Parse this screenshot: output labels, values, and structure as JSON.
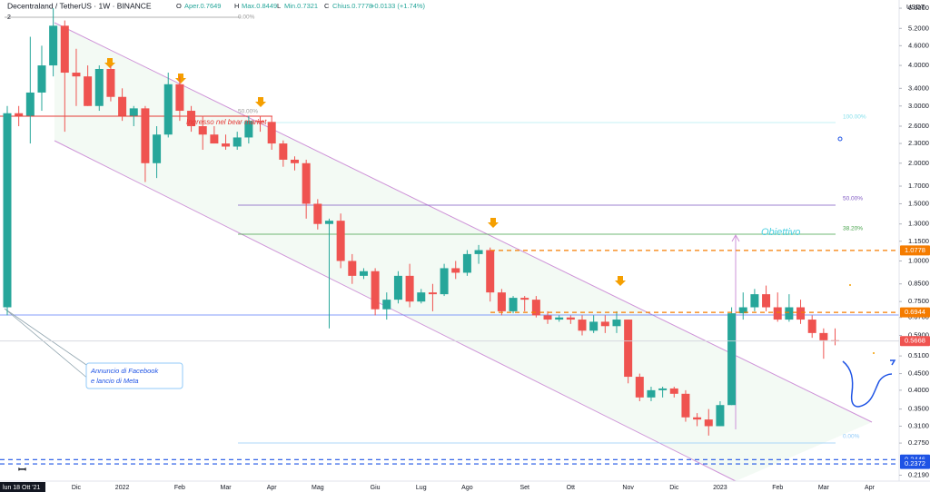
{
  "chart_data": {
    "type": "candlestick",
    "title": "Decentraland / TetherUS · 1W · BINANCE",
    "header_items": [
      "O",
      "Aper.0.7649",
      "H",
      "Max.0.8449",
      "L",
      "Min.0.7321",
      "C",
      "Chius.0.7778",
      "+0.0133 (+1.74%)"
    ],
    "indicator": "2",
    "currency": "USDT",
    "log_scale": true,
    "grid": false,
    "up_color": "#26a69a",
    "down_color": "#ef5350",
    "categories": [
      "lun 18 Ott '21",
      null,
      null,
      null,
      null,
      null,
      "Dic",
      null,
      null,
      null,
      "2022",
      null,
      null,
      null,
      null,
      "Feb",
      null,
      null,
      null,
      "Mar",
      null,
      null,
      null,
      "Apr",
      null,
      null,
      null,
      "Mag",
      null,
      null,
      null,
      null,
      "Giu",
      null,
      null,
      null,
      "Lug",
      null,
      null,
      null,
      "Ago",
      null,
      null,
      null,
      null,
      "Set",
      null,
      null,
      null,
      "Ott",
      null,
      null,
      null,
      null,
      "Nov",
      null,
      null,
      null,
      "Dic",
      null,
      null,
      null,
      "2023",
      null,
      null,
      null,
      null,
      "Feb",
      null,
      null,
      null,
      "Mar",
      null,
      null,
      null,
      "Apr",
      null,
      null
    ],
    "open": [
      0.72,
      2.85,
      2.8,
      3.3,
      4.0,
      5.3,
      3.8,
      3.7,
      3.0,
      3.9,
      3.2,
      2.8,
      2.95,
      2.0,
      2.45,
      3.5,
      2.9,
      2.6,
      2.45,
      2.3,
      2.25,
      2.4,
      2.7,
      2.68,
      2.3,
      2.05,
      2.0,
      1.5,
      1.3,
      1.33,
      1.0,
      0.9,
      0.93,
      0.71,
      0.76,
      0.9,
      0.75,
      0.8,
      0.79,
      0.95,
      0.92,
      1.05,
      1.08,
      0.8,
      0.7,
      0.77,
      0.76,
      0.68,
      0.66,
      0.67,
      0.66,
      0.61,
      0.65,
      0.63,
      0.66,
      0.44,
      0.38,
      0.4,
      0.405,
      0.39,
      0.33,
      0.325,
      0.31,
      0.36,
      0.69,
      0.72,
      0.79,
      0.72,
      0.66,
      0.72,
      0.66,
      0.6,
      0.57,
      null,
      null,
      null,
      null,
      null
    ],
    "high": [
      3.0,
      3.0,
      4.9,
      4.6,
      6.0,
      5.5,
      4.5,
      4.0,
      4.0,
      4.0,
      3.4,
      3.0,
      3.0,
      2.6,
      3.8,
      3.7,
      3.0,
      2.8,
      2.6,
      2.45,
      2.5,
      2.8,
      2.8,
      2.8,
      2.35,
      2.1,
      2.05,
      1.55,
      1.35,
      1.4,
      1.05,
      0.95,
      0.95,
      0.8,
      0.93,
      0.98,
      0.82,
      0.85,
      0.98,
      1.0,
      1.08,
      1.12,
      1.1,
      0.82,
      0.78,
      0.78,
      0.78,
      0.7,
      0.68,
      0.68,
      0.68,
      0.68,
      0.68,
      0.7,
      0.66,
      0.45,
      0.41,
      0.41,
      0.41,
      0.4,
      0.34,
      0.35,
      0.37,
      0.72,
      0.8,
      0.82,
      0.84,
      0.8,
      0.79,
      0.76,
      0.68,
      0.62,
      0.62,
      null,
      null,
      null,
      null,
      null
    ],
    "low": [
      0.68,
      2.6,
      2.3,
      2.9,
      3.7,
      2.5,
      3.0,
      3.0,
      2.9,
      3.1,
      2.7,
      2.6,
      1.75,
      1.8,
      2.4,
      2.7,
      2.5,
      2.2,
      2.3,
      2.2,
      2.2,
      2.3,
      2.5,
      2.2,
      1.95,
      1.9,
      1.35,
      1.25,
      0.62,
      0.95,
      0.85,
      0.88,
      0.68,
      0.66,
      0.74,
      0.72,
      0.74,
      0.7,
      0.78,
      0.88,
      0.9,
      0.98,
      0.75,
      0.68,
      0.69,
      0.7,
      0.67,
      0.64,
      0.65,
      0.64,
      0.59,
      0.6,
      0.6,
      0.6,
      0.42,
      0.37,
      0.37,
      0.38,
      0.38,
      0.32,
      0.31,
      0.29,
      0.31,
      0.36,
      0.66,
      0.7,
      0.7,
      0.65,
      0.65,
      0.64,
      0.58,
      0.5,
      0.55,
      null,
      null,
      null,
      null,
      null
    ],
    "close": [
      2.85,
      2.8,
      3.3,
      4.0,
      5.3,
      3.8,
      3.7,
      3.0,
      3.9,
      3.2,
      2.8,
      2.95,
      2.0,
      2.45,
      3.5,
      2.9,
      2.6,
      2.45,
      2.3,
      2.25,
      2.4,
      2.7,
      2.68,
      2.3,
      2.05,
      2.0,
      1.5,
      1.3,
      1.33,
      1.0,
      0.9,
      0.93,
      0.71,
      0.76,
      0.9,
      0.75,
      0.8,
      0.79,
      0.95,
      0.92,
      1.05,
      1.08,
      0.8,
      0.7,
      0.77,
      0.76,
      0.68,
      0.66,
      0.67,
      0.66,
      0.61,
      0.65,
      0.63,
      0.66,
      0.44,
      0.38,
      0.4,
      0.405,
      0.39,
      0.33,
      0.325,
      0.31,
      0.36,
      0.69,
      0.72,
      0.79,
      0.72,
      0.66,
      0.72,
      0.66,
      0.6,
      0.57,
      0.5668,
      null,
      null,
      null,
      null,
      null
    ],
    "ylim": [
      0.21,
      6.36
    ],
    "yticks": [
      {
        "value": 6,
        "label": "6.0000"
      },
      {
        "value": 5.2,
        "label": "5.2000"
      },
      {
        "value": 4.6,
        "label": "4.6000"
      },
      {
        "value": 4,
        "label": "4.0000"
      },
      {
        "value": 3.4,
        "label": "3.4000"
      },
      {
        "value": 3,
        "label": "3.0000"
      },
      {
        "value": 2.6,
        "label": "2.6000"
      },
      {
        "value": 2.3,
        "label": "2.3000"
      },
      {
        "value": 2,
        "label": "2.0000"
      },
      {
        "value": 1.7,
        "label": "1.7000"
      },
      {
        "value": 1.5,
        "label": "1.5000"
      },
      {
        "value": 1.3,
        "label": "1.3000"
      },
      {
        "value": 1.15,
        "label": "1.1500"
      },
      {
        "value": 1,
        "label": "1.0000"
      },
      {
        "value": 0.85,
        "label": "0.8500"
      },
      {
        "value": 0.75,
        "label": "0.7500"
      },
      {
        "value": 0.67,
        "label": "0.6700"
      },
      {
        "value": 0.59,
        "label": "0.5900"
      },
      {
        "value": 0.51,
        "label": "0.5100"
      },
      {
        "value": 0.45,
        "label": "0.4500"
      },
      {
        "value": 0.4,
        "label": "0.4000"
      },
      {
        "value": 0.35,
        "label": "0.3500"
      },
      {
        "value": 0.31,
        "label": "0.3100"
      },
      {
        "value": 0.275,
        "label": "0.2750"
      },
      {
        "value": 0.219,
        "label": "0.2190"
      }
    ],
    "levels": [
      {
        "value": 1.0778,
        "color": "#f57c00",
        "style": "dashed"
      },
      {
        "value": 0.6944,
        "color": "#f57c00",
        "style": "dashed"
      },
      {
        "value": 0.5668,
        "color": "#ef5350",
        "style": "solid"
      },
      {
        "value": 0.2446,
        "color": "#1e53e5",
        "style": "dashed"
      },
      {
        "value": 0.2372,
        "color": "#1e53e5",
        "style": "dashed"
      }
    ],
    "fib_labels": [
      "0.00%",
      "50.00%",
      "100.00%",
      "50.00%",
      "38.20%",
      "0.00%"
    ],
    "annotations": [
      "Ingresso nel bear market",
      "Obiettivo",
      "Annuncio di Facebook",
      "e lancio di Meta"
    ]
  }
}
